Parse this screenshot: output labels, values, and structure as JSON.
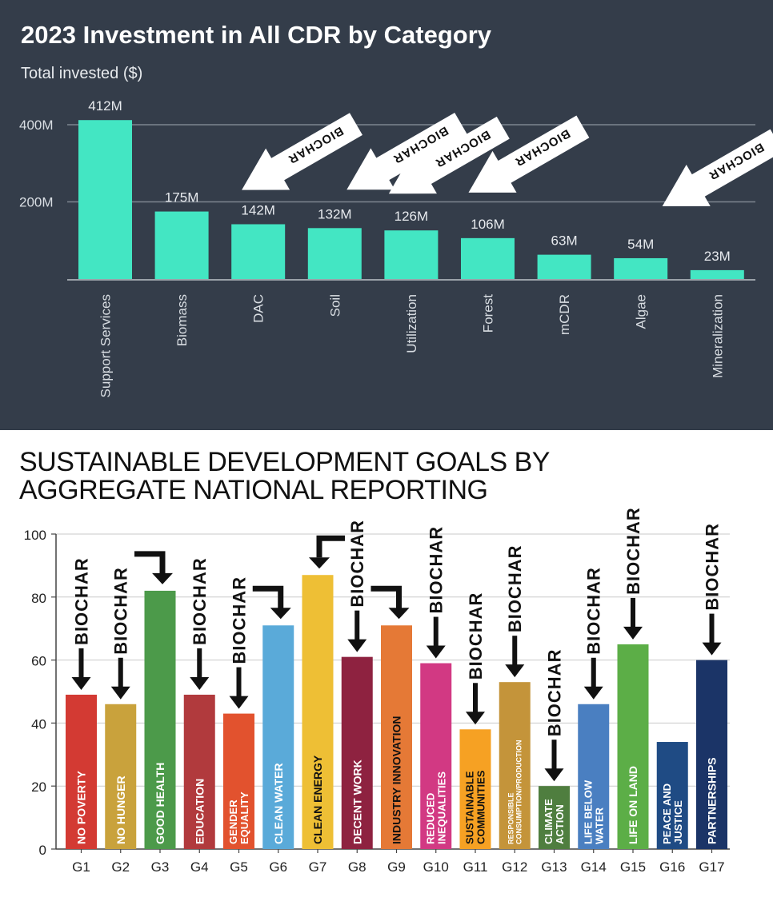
{
  "charts": {
    "top": {
      "title": "2023 Investment in All CDR by Category",
      "ylabel": "Total invested ($)"
    },
    "bottom": {
      "title_line1": "SUSTAINABLE DEVELOPMENT GOALS BY",
      "title_line2": "AGGREGATE NATIONAL REPORTING"
    }
  },
  "chart_data": [
    {
      "type": "bar",
      "title": "2023 Investment in All CDR by Category",
      "ylabel": "Total invested ($)",
      "categories": [
        "Support Services",
        "Biomass",
        "DAC",
        "Soil",
        "Utilization",
        "Forest",
        "mCDR",
        "Algae",
        "Mineralization"
      ],
      "values": [
        412,
        175,
        142,
        132,
        126,
        106,
        63,
        54,
        23
      ],
      "data_labels": [
        "412M",
        "175M",
        "142M",
        "132M",
        "126M",
        "106M",
        "63M",
        "54M",
        "23M"
      ],
      "yticks": [
        "200M",
        "400M"
      ],
      "ytick_values": [
        200,
        400
      ],
      "ylim": [
        0,
        420
      ],
      "grid": true,
      "bar_color": "#43e6c3",
      "annotation_text": "BIOCHAR",
      "annotations_pointing_to": [
        "Biomass",
        "Soil",
        "Utilization",
        "Forest",
        "Algae"
      ]
    },
    {
      "type": "bar",
      "title": "SUSTAINABLE DEVELOPMENT GOALS BY AGGREGATE NATIONAL REPORTING",
      "categories": [
        "G1",
        "G2",
        "G3",
        "G4",
        "G5",
        "G6",
        "G7",
        "G8",
        "G9",
        "G10",
        "G11",
        "G12",
        "G13",
        "G14",
        "G15",
        "G16",
        "G17"
      ],
      "values": [
        49,
        46,
        82,
        49,
        43,
        71,
        87,
        61,
        71,
        59,
        38,
        53,
        20,
        46,
        65,
        34,
        60
      ],
      "bar_labels": [
        "NO POVERTY",
        "NO HUNGER",
        "GOOD HEALTH",
        "EDUCATION",
        "GENDER|EQUALITY",
        "CLEAN WATER",
        "CLEAN ENERGY",
        "DECENT WORK",
        "INDUSTRY INNOVATION",
        "REDUCED|INEQUALITIES",
        "SUSTAINABLE|COMMUNITIES",
        "RESPONSIBLE|CONSUMPTION/PRODUCTION",
        "CLIMATE|ACTION",
        "LIFE BELOW|WATER",
        "LIFE ON LAND",
        "PEACE AND|JUSTICE",
        "PARTNERSHIPS"
      ],
      "colors": [
        "#d33a33",
        "#c9a23c",
        "#4c9a4a",
        "#b13a3d",
        "#e2522e",
        "#5aaad9",
        "#eebf35",
        "#8e2240",
        "#e57936",
        "#d23983",
        "#f6a123",
        "#c4943a",
        "#4f7e3f",
        "#4a7fc1",
        "#5cae47",
        "#1f4b84",
        "#1b3467"
      ],
      "yticks": [
        "0",
        "20",
        "40",
        "60",
        "80",
        "100"
      ],
      "ylim": [
        0,
        100
      ],
      "grid": true,
      "annotation_text": "BIOCHAR",
      "annotated_goals": [
        "G1",
        "G2",
        "G3",
        "G4",
        "G5",
        "G6",
        "G7",
        "G8",
        "G9",
        "G10",
        "G11",
        "G12",
        "G13",
        "G14",
        "G15",
        "G17"
      ]
    }
  ]
}
